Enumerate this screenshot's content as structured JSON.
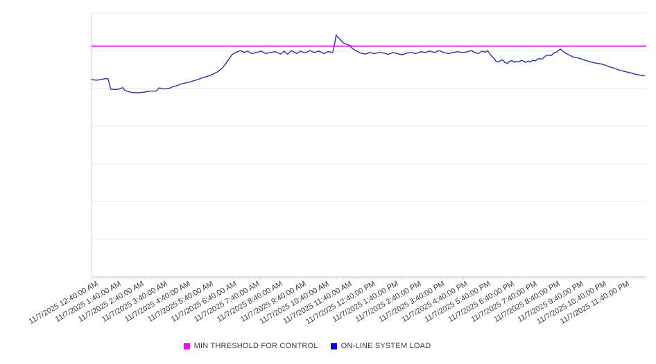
{
  "chart_data": {
    "type": "line",
    "title": "",
    "x_axis": {
      "tick_labels": [
        "11/7/2025 12:40:00 AM",
        "11/7/2025 1:40:00 AM",
        "11/7/2025 2:40:00 AM",
        "11/7/2025 3:40:00 AM",
        "11/7/2025 4:40:00 AM",
        "11/7/2025 5:40:00 AM",
        "11/7/2025 6:40:00 AM",
        "11/7/2025 7:40:00 AM",
        "11/7/2025 8:40:00 AM",
        "11/7/2025 9:40:00 AM",
        "11/7/2025 10:40:00 AM",
        "11/7/2025 11:40:00 AM",
        "11/7/2025 12:40:00 PM",
        "11/7/2025 1:40:00 PM",
        "11/7/2025 2:40:00 PM",
        "11/7/2025 3:40:00 PM",
        "11/7/2025 4:40:00 PM",
        "11/7/2025 5:40:00 PM",
        "11/7/2025 6:40:00 PM",
        "11/7/2025 7:40:00 PM",
        "11/7/2025 8:40:00 PM",
        "11/7/2025 9:40:00 PM",
        "11/7/2025 10:40:00 PM",
        "11/7/2025 11:40:00 PM"
      ],
      "span_minutes": 1440,
      "first_tick_offset_minutes": 10,
      "label_interval_minutes": 60,
      "minor_tick_interval_minutes": 6
    },
    "y_axis": {
      "tick_labels": [],
      "gridline_count": 8,
      "note": "no numeric y labels visible; series values are percent of plot height (0 = x-axis, 100 = top gridline)"
    },
    "legend": {
      "position": "bottom"
    },
    "series": [
      {
        "name": "MIN THRESHOLD FOR CONTROL",
        "type": "threshold",
        "color": "#e606e6",
        "legend_color": "#ff00ff",
        "value_pct": 86.6
      },
      {
        "name": "ON-LINE SYSTEM LOAD",
        "type": "line",
        "color": "#2a2acd",
        "legend_color": "#0000ff",
        "points": [
          [
            0,
            74.0
          ],
          [
            14,
            73.8
          ],
          [
            29,
            74.2
          ],
          [
            38,
            74.4
          ],
          [
            43,
            74.3
          ],
          [
            50,
            70.4
          ],
          [
            59,
            70.3
          ],
          [
            68,
            70.3
          ],
          [
            77,
            70.8
          ],
          [
            81,
            71.0
          ],
          [
            86,
            70.0
          ],
          [
            95,
            69.5
          ],
          [
            104,
            69.2
          ],
          [
            113,
            69.1
          ],
          [
            122,
            69.1
          ],
          [
            131,
            69.2
          ],
          [
            140,
            69.4
          ],
          [
            149,
            69.7
          ],
          [
            158,
            69.7
          ],
          [
            167,
            69.7
          ],
          [
            176,
            70.9
          ],
          [
            185,
            70.5
          ],
          [
            194,
            70.6
          ],
          [
            203,
            70.8
          ],
          [
            212,
            71.4
          ],
          [
            221,
            71.7
          ],
          [
            230,
            72.3
          ],
          [
            239,
            72.6
          ],
          [
            248,
            72.9
          ],
          [
            257,
            73.2
          ],
          [
            266,
            73.6
          ],
          [
            275,
            74.0
          ],
          [
            284,
            74.5
          ],
          [
            293,
            74.9
          ],
          [
            302,
            75.3
          ],
          [
            311,
            75.8
          ],
          [
            320,
            76.4
          ],
          [
            329,
            77.1
          ],
          [
            338,
            78.2
          ],
          [
            347,
            79.7
          ],
          [
            356,
            81.6
          ],
          [
            365,
            83.4
          ],
          [
            374,
            84.2
          ],
          [
            387,
            84.9
          ],
          [
            396,
            84.2
          ],
          [
            405,
            84.7
          ],
          [
            416,
            83.8
          ],
          [
            428,
            84.2
          ],
          [
            441,
            84.7
          ],
          [
            452,
            83.8
          ],
          [
            464,
            84.2
          ],
          [
            477,
            84.5
          ],
          [
            482,
            84.2
          ],
          [
            491,
            83.6
          ],
          [
            500,
            84.7
          ],
          [
            509,
            83.5
          ],
          [
            518,
            84.9
          ],
          [
            533,
            83.8
          ],
          [
            542,
            84.7
          ],
          [
            554,
            84.0
          ],
          [
            567,
            84.9
          ],
          [
            578,
            84.2
          ],
          [
            590,
            84.7
          ],
          [
            603,
            83.8
          ],
          [
            614,
            84.5
          ],
          [
            626,
            84.2
          ],
          [
            631,
            87.5
          ],
          [
            635,
            90.8
          ],
          [
            639,
            89.9
          ],
          [
            644,
            89.4
          ],
          [
            653,
            87.8
          ],
          [
            662,
            87.3
          ],
          [
            671,
            86.8
          ],
          [
            677,
            85.7
          ],
          [
            686,
            84.9
          ],
          [
            698,
            84.0
          ],
          [
            711,
            83.6
          ],
          [
            722,
            84.2
          ],
          [
            734,
            83.8
          ],
          [
            747,
            84.2
          ],
          [
            758,
            84.0
          ],
          [
            770,
            83.5
          ],
          [
            783,
            84.2
          ],
          [
            794,
            83.8
          ],
          [
            806,
            83.3
          ],
          [
            819,
            84.0
          ],
          [
            830,
            84.2
          ],
          [
            842,
            83.8
          ],
          [
            855,
            84.5
          ],
          [
            866,
            84.2
          ],
          [
            878,
            84.7
          ],
          [
            891,
            84.2
          ],
          [
            902,
            84.9
          ],
          [
            914,
            84.2
          ],
          [
            927,
            83.8
          ],
          [
            938,
            84.2
          ],
          [
            950,
            84.5
          ],
          [
            963,
            84.2
          ],
          [
            974,
            84.4
          ],
          [
            986,
            84.9
          ],
          [
            995,
            84.2
          ],
          [
            1004,
            83.8
          ],
          [
            1013,
            84.7
          ],
          [
            1022,
            84.3
          ],
          [
            1028,
            84.9
          ],
          [
            1037,
            83.1
          ],
          [
            1046,
            81.8
          ],
          [
            1049,
            81.0
          ],
          [
            1055,
            80.6
          ],
          [
            1062,
            81.2
          ],
          [
            1067,
            81.4
          ],
          [
            1073,
            80.4
          ],
          [
            1080,
            80.1
          ],
          [
            1085,
            80.9
          ],
          [
            1091,
            81.2
          ],
          [
            1098,
            80.5
          ],
          [
            1103,
            80.9
          ],
          [
            1109,
            80.6
          ],
          [
            1116,
            81.3
          ],
          [
            1121,
            80.9
          ],
          [
            1127,
            80.5
          ],
          [
            1134,
            81.0
          ],
          [
            1139,
            80.6
          ],
          [
            1145,
            81.3
          ],
          [
            1152,
            81.0
          ],
          [
            1157,
            81.7
          ],
          [
            1163,
            81.9
          ],
          [
            1170,
            81.7
          ],
          [
            1175,
            82.5
          ],
          [
            1181,
            83.1
          ],
          [
            1188,
            83.2
          ],
          [
            1193,
            83.0
          ],
          [
            1199,
            83.9
          ],
          [
            1202,
            84.2
          ],
          [
            1208,
            84.4
          ],
          [
            1213,
            85.1
          ],
          [
            1217,
            85.5
          ],
          [
            1220,
            85.1
          ],
          [
            1226,
            84.4
          ],
          [
            1233,
            83.8
          ],
          [
            1242,
            83.1
          ],
          [
            1251,
            82.5
          ],
          [
            1260,
            82.2
          ],
          [
            1269,
            81.9
          ],
          [
            1278,
            81.4
          ],
          [
            1287,
            81.0
          ],
          [
            1296,
            80.6
          ],
          [
            1305,
            80.3
          ],
          [
            1314,
            80.1
          ],
          [
            1323,
            79.9
          ],
          [
            1332,
            79.5
          ],
          [
            1341,
            79.0
          ],
          [
            1350,
            78.6
          ],
          [
            1359,
            78.2
          ],
          [
            1368,
            77.7
          ],
          [
            1377,
            77.3
          ],
          [
            1386,
            77.0
          ],
          [
            1395,
            76.7
          ],
          [
            1404,
            76.4
          ],
          [
            1413,
            76.0
          ],
          [
            1422,
            75.8
          ],
          [
            1431,
            75.4
          ],
          [
            1436,
            75.7
          ]
        ]
      }
    ]
  },
  "colors": {
    "background": "#ffffff",
    "gridline": "#e9e9e9",
    "axis": "#c8c8c8",
    "minor_tick": "#c8c8c8",
    "label_text": "#3c3c3c"
  }
}
